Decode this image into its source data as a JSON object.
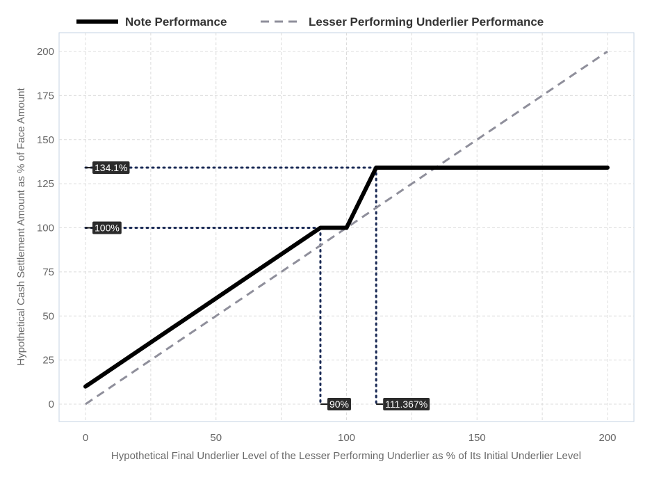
{
  "chart_data": {
    "type": "line",
    "xlabel": "Hypothetical Final Underlier Level of the Lesser Performing Underlier as % of Its Initial Underlier Level",
    "ylabel": "Hypothetical Cash Settlement Amount as % of Face Amount",
    "xlim": [
      0,
      200
    ],
    "ylim": [
      0,
      200
    ],
    "x_ticks": [
      0,
      50,
      100,
      150,
      200
    ],
    "y_ticks": [
      0,
      25,
      50,
      75,
      100,
      125,
      150,
      175,
      200
    ],
    "grid": true,
    "legend_position": "top",
    "series": [
      {
        "name": "Note Performance",
        "style": "solid",
        "color": "#000000",
        "x": [
          0,
          90,
          100,
          111.367,
          200
        ],
        "y": [
          10,
          100,
          100,
          134.1,
          134.1
        ]
      },
      {
        "name": "Lesser Performing Underlier Performance",
        "style": "dashed",
        "color": "#8f8f9b",
        "x": [
          0,
          200
        ],
        "y": [
          0,
          200
        ]
      }
    ],
    "annotations": [
      {
        "label": "134.1%",
        "kind": "horizontal",
        "x": 111.367,
        "y": 134.1
      },
      {
        "label": "100%",
        "kind": "horizontal",
        "x": 90,
        "y": 100
      },
      {
        "label": "90%",
        "kind": "vertical",
        "x": 90,
        "y": 100
      },
      {
        "label": "111.367%",
        "kind": "vertical",
        "x": 111.367,
        "y": 134.1
      }
    ]
  }
}
